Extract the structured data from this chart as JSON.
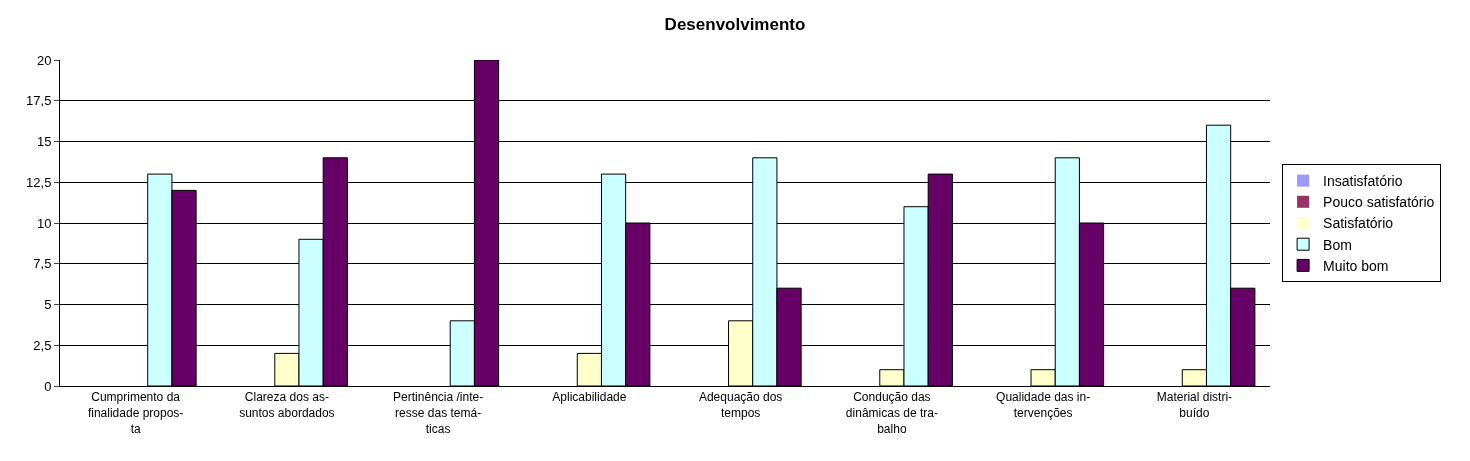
{
  "chart_data": {
    "type": "bar",
    "title": "Desenvolvimento",
    "categories": [
      "Cumprimento da\nfinalidade propos-\nta",
      "Clareza dos as-\nsuntos abordados",
      "Pertinência /inte-\nresse das temá-\nticas",
      "Aplicabilidade",
      "Adequação dos\ntempos",
      "Condução das\ndinâmicas de tra-\nbalho",
      "Qualidade das in-\ntervenções",
      "Material distri-\nbuído"
    ],
    "series": [
      {
        "name": "Insatisfatório",
        "color": "#9999ff",
        "values": [
          0,
          0,
          0,
          0,
          0,
          0,
          0,
          0
        ]
      },
      {
        "name": "Pouco satisfatório",
        "color": "#993366",
        "values": [
          0,
          0,
          0,
          0,
          0,
          0,
          0,
          0
        ]
      },
      {
        "name": "Satisfatório",
        "color": "#ffffcc",
        "values": [
          0,
          2,
          0,
          2,
          4,
          1,
          1,
          1
        ]
      },
      {
        "name": "Bom",
        "color": "#ccffff",
        "values": [
          13,
          9,
          4,
          13,
          14,
          11,
          14,
          16
        ]
      },
      {
        "name": "Muito bom",
        "color": "#660066",
        "values": [
          12,
          14,
          20,
          10,
          6,
          13,
          10,
          6
        ]
      }
    ],
    "ylim": [
      0,
      20
    ],
    "yticks": [
      0,
      {
        "value": 2.5,
        "label": "2,5"
      },
      5,
      {
        "value": 7.5,
        "label": "7,5"
      },
      10,
      {
        "value": 12.5,
        "label": "12,5"
      },
      15,
      {
        "value": 17.5,
        "label": "17,5"
      },
      20
    ],
    "grid": "y",
    "legend": "right"
  }
}
